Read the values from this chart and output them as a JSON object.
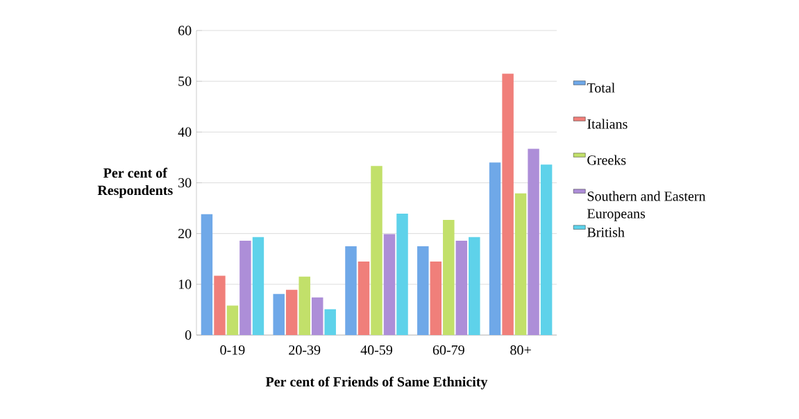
{
  "chart_data": {
    "type": "bar",
    "xlabel": "Per cent of Friends of Same Ethnicity",
    "ylabel": "Per cent of Respondents",
    "categories": [
      "0-19",
      "20-39",
      "40-59",
      "60-79",
      "80+"
    ],
    "series": [
      {
        "name": "Total",
        "color": "#6fa8e8",
        "values": [
          23.8,
          8.1,
          17.5,
          17.5,
          34.0
        ]
      },
      {
        "name": "Italians",
        "color": "#f07f7a",
        "values": [
          11.7,
          8.9,
          14.5,
          14.5,
          51.5
        ]
      },
      {
        "name": "Greeks",
        "color": "#c2e06a",
        "values": [
          5.8,
          11.5,
          33.3,
          22.7,
          27.9
        ]
      },
      {
        "name": "Southern and Eastern Europeans",
        "color": "#ad8ed8",
        "values": [
          18.6,
          7.4,
          19.9,
          18.6,
          36.7
        ]
      },
      {
        "name": "British",
        "color": "#5ed2ea",
        "values": [
          19.3,
          5.1,
          23.9,
          19.3,
          33.6
        ]
      }
    ],
    "ylim": [
      0,
      60
    ],
    "yticks": [
      0,
      10,
      20,
      30,
      40,
      50,
      60
    ],
    "grid": "y",
    "legend": "right"
  }
}
